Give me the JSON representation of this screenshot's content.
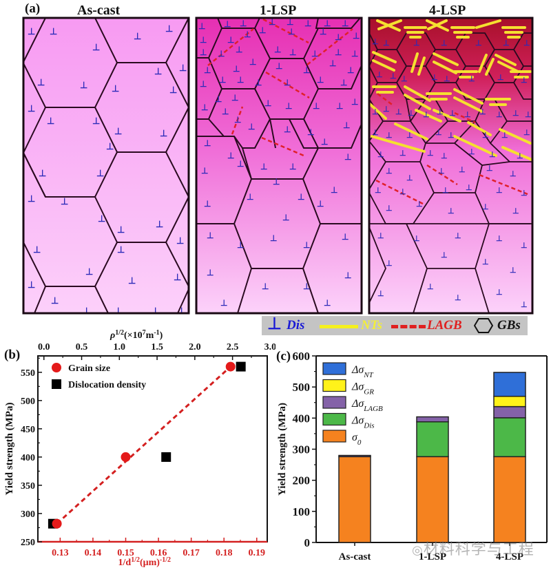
{
  "panel_a": {
    "label": "(a)",
    "titles": [
      "As-cast",
      "1-LSP",
      "4-LSP"
    ],
    "dislocation_symbol": "⊥",
    "legend": [
      {
        "key": "dis",
        "symbol": "⊥",
        "label": "Dis",
        "color": "#1a1ad6"
      },
      {
        "key": "nts",
        "symbol": "line-solid",
        "label": "NTs",
        "color": "#f5f01e"
      },
      {
        "key": "lagb",
        "symbol": "line-dashed",
        "label": "LAGB",
        "color": "#e02020"
      },
      {
        "key": "gbs",
        "symbol": "hexagon",
        "label": "GBs",
        "color": "#111111"
      }
    ],
    "colors": {
      "grain_fill_light": "#fbc8f8",
      "grain_fill_mid": "#f58cf0",
      "grain_fill_dense": "#e8209a",
      "surface_dark": "#b0102a",
      "boundary": "#2a0a20"
    }
  },
  "chart_data": [
    {
      "id": "b",
      "panel_label": "(b)",
      "type": "scatter",
      "title": "",
      "xlabel": "1/d^1/2(μm)^-1/2",
      "xlabel_parts": {
        "base": "1/d",
        "sup1": "1/2",
        "mid": "(μm)",
        "sup2": "-1/2"
      },
      "x2label": "ρ^1/2(×10^7 m^-1)",
      "x2label_parts": {
        "rho": "ρ",
        "sup1": "1/2",
        "mid": "(×10",
        "sup2": "7",
        "tail": "m",
        "sup3": "-1",
        "end": ")"
      },
      "ylabel": "Yield strength (MPa)",
      "xlim": [
        0.1232,
        0.1932
      ],
      "x2lim": [
        -0.08,
        2.96
      ],
      "ylim": [
        250,
        579
      ],
      "xticks": [
        0.13,
        0.14,
        0.15,
        0.16,
        0.17,
        0.18,
        0.19
      ],
      "xtick_labels": [
        "0.13",
        "0.14",
        "0.15",
        "0.16",
        "0.17",
        "0.18",
        "0.19"
      ],
      "x2ticks": [
        0.0,
        0.5,
        1.0,
        1.5,
        2.0,
        2.5,
        3.0
      ],
      "x2tick_labels": [
        "0.0",
        "0.5",
        "1.0",
        "1.5",
        "2.0",
        "2.5",
        "3.0"
      ],
      "yticks": [
        250,
        300,
        350,
        400,
        450,
        500,
        550
      ],
      "ytick_labels": [
        "250",
        "300",
        "350",
        "400",
        "450",
        "500",
        "550"
      ],
      "series": [
        {
          "name": "Grain size",
          "marker": "circle",
          "color": "#e41a1a",
          "axis": "bottom",
          "x": [
            0.129,
            0.15,
            0.182
          ],
          "y": [
            282,
            400,
            560
          ]
        },
        {
          "name": "Dislocation density",
          "marker": "square",
          "color": "#000000",
          "axis": "top",
          "x": [
            0.12,
            1.62,
            2.61
          ],
          "y": [
            282,
            400,
            560
          ]
        }
      ],
      "fit_line": {
        "name": "Grain size fit",
        "style": "dashed",
        "color": "#d42020",
        "x": [
          0.129,
          0.182
        ],
        "y": [
          282,
          560
        ]
      },
      "bottom_axis_color": "#d42020",
      "legend_position": "top-left",
      "grid": false
    },
    {
      "id": "c",
      "panel_label": "(c)",
      "type": "bar",
      "stacked": true,
      "title": "",
      "xlabel": "",
      "ylabel": "Yield strength (MPa)",
      "categories": [
        "As-cast",
        "1-LSP",
        "4-LSP"
      ],
      "ylim": [
        0,
        600
      ],
      "yticks": [
        0,
        100,
        200,
        300,
        400,
        500,
        600
      ],
      "ytick_labels": [
        "0",
        "100",
        "200",
        "300",
        "400",
        "500",
        "600"
      ],
      "series": [
        {
          "name": "σ0",
          "label_main": "σ",
          "label_sub": "0",
          "color": "#f5821f",
          "values": [
            276,
            276,
            276
          ]
        },
        {
          "name": "Δσ_Dis",
          "label_main": "Δσ",
          "label_sub": "Dis",
          "color": "#4cb848",
          "values": [
            0,
            112,
            125
          ]
        },
        {
          "name": "Δσ_LAGB",
          "label_main": "Δσ",
          "label_sub": "LAGB",
          "color": "#8462a8",
          "values": [
            4,
            16,
            36
          ]
        },
        {
          "name": "Δσ_GR",
          "label_main": "Δσ",
          "label_sub": "GR",
          "color": "#fff21a",
          "values": [
            0,
            0,
            33
          ]
        },
        {
          "name": "Δσ_NT",
          "label_main": "Δσ",
          "label_sub": "NT",
          "color": "#2f6fd8",
          "values": [
            0,
            0,
            77
          ]
        }
      ],
      "totals": [
        280,
        404,
        547
      ],
      "legend_order": [
        "Δσ_NT",
        "Δσ_GR",
        "Δσ_LAGB",
        "Δσ_Dis",
        "σ0"
      ],
      "legend_position": "top-left",
      "grid": false
    }
  ],
  "watermark": {
    "text": "材料科学与工程",
    "icon": "wechat-icon"
  }
}
